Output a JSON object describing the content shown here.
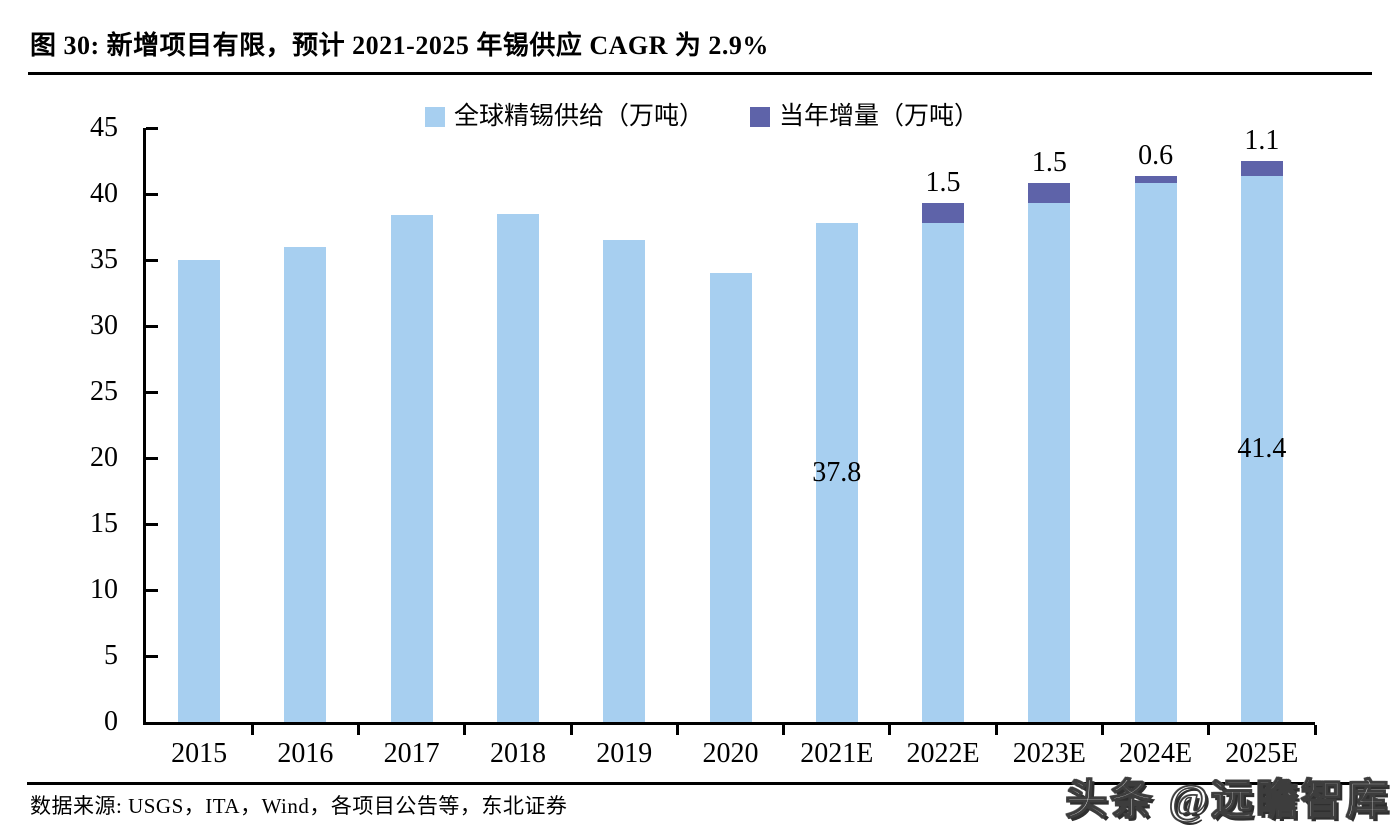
{
  "figure": {
    "title": "图 30:  新增项目有限，预计 2021-2025 年锡供应 CAGR 为 2.9%",
    "source": "数据来源: USGS，ITA，Wind，各项目公告等，东北证券",
    "watermark": "头条 @远瞻智库"
  },
  "colors": {
    "supply": "#A7CFF0",
    "increment": "#5E63A9",
    "axis": "#000000",
    "label_text": "#000000"
  },
  "chart_data": {
    "type": "bar",
    "stacked": true,
    "title": "新增项目有限，预计 2021-2025 年锡供应 CAGR 为 2.9%",
    "categories": [
      "2015",
      "2016",
      "2017",
      "2018",
      "2019",
      "2020",
      "2021E",
      "2022E",
      "2023E",
      "2024E",
      "2025E"
    ],
    "series": [
      {
        "name": "全球精锡供给（万吨）",
        "color_key": "supply",
        "values": [
          35.0,
          36.0,
          38.4,
          38.5,
          36.5,
          34.0,
          37.8,
          37.8,
          39.3,
          40.8,
          41.4
        ]
      },
      {
        "name": "当年增量（万吨）",
        "color_key": "increment",
        "values": [
          0,
          0,
          0,
          0,
          0,
          0,
          0,
          1.5,
          1.5,
          0.6,
          1.1
        ]
      }
    ],
    "increment_labels": [
      null,
      null,
      null,
      null,
      null,
      null,
      null,
      "1.5",
      "1.5",
      "0.6",
      "1.1"
    ],
    "inside_labels": [
      null,
      null,
      null,
      null,
      null,
      null,
      "37.8",
      null,
      null,
      null,
      "41.4"
    ],
    "xlabel": "",
    "ylabel": "",
    "ylim": [
      0,
      45
    ],
    "ytick_step": 5,
    "grid": false,
    "legend_position": "top-center"
  }
}
